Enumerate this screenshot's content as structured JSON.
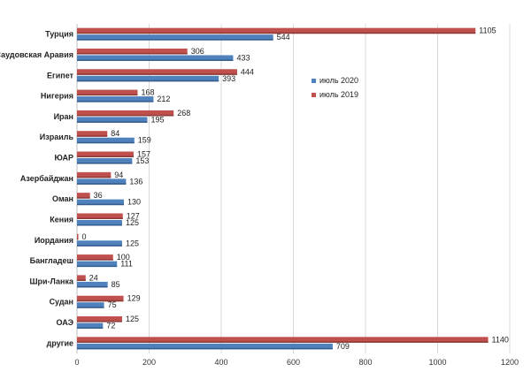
{
  "chart_data": {
    "type": "bar",
    "orientation": "horizontal",
    "categories": [
      "Турция",
      "Саудовская Аравия",
      "Египет",
      "Нигерия",
      "Иран",
      "Израиль",
      "ЮАР",
      "Азербайджан",
      "Оман",
      "Кения",
      "Иордания",
      "Бангладеш",
      "Шри-Ланка",
      "Судан",
      "ОАЭ",
      "другие"
    ],
    "series": [
      {
        "name": "июль 2019",
        "color": "#c0504d",
        "values": [
          1105,
          306,
          444,
          168,
          268,
          84,
          157,
          94,
          36,
          127,
          0,
          100,
          24,
          129,
          125,
          1140
        ]
      },
      {
        "name": "июль 2020",
        "color": "#4f81bd",
        "values": [
          544,
          433,
          393,
          212,
          195,
          159,
          153,
          136,
          130,
          125,
          125,
          111,
          85,
          75,
          72,
          709
        ]
      }
    ],
    "legend_order": [
      "июль 2020",
      "июль 2019"
    ],
    "xlim": [
      0,
      1200
    ],
    "xticks": [
      0,
      200,
      400,
      600,
      800,
      1000,
      1200
    ],
    "grid": true,
    "legend_position": "right"
  }
}
